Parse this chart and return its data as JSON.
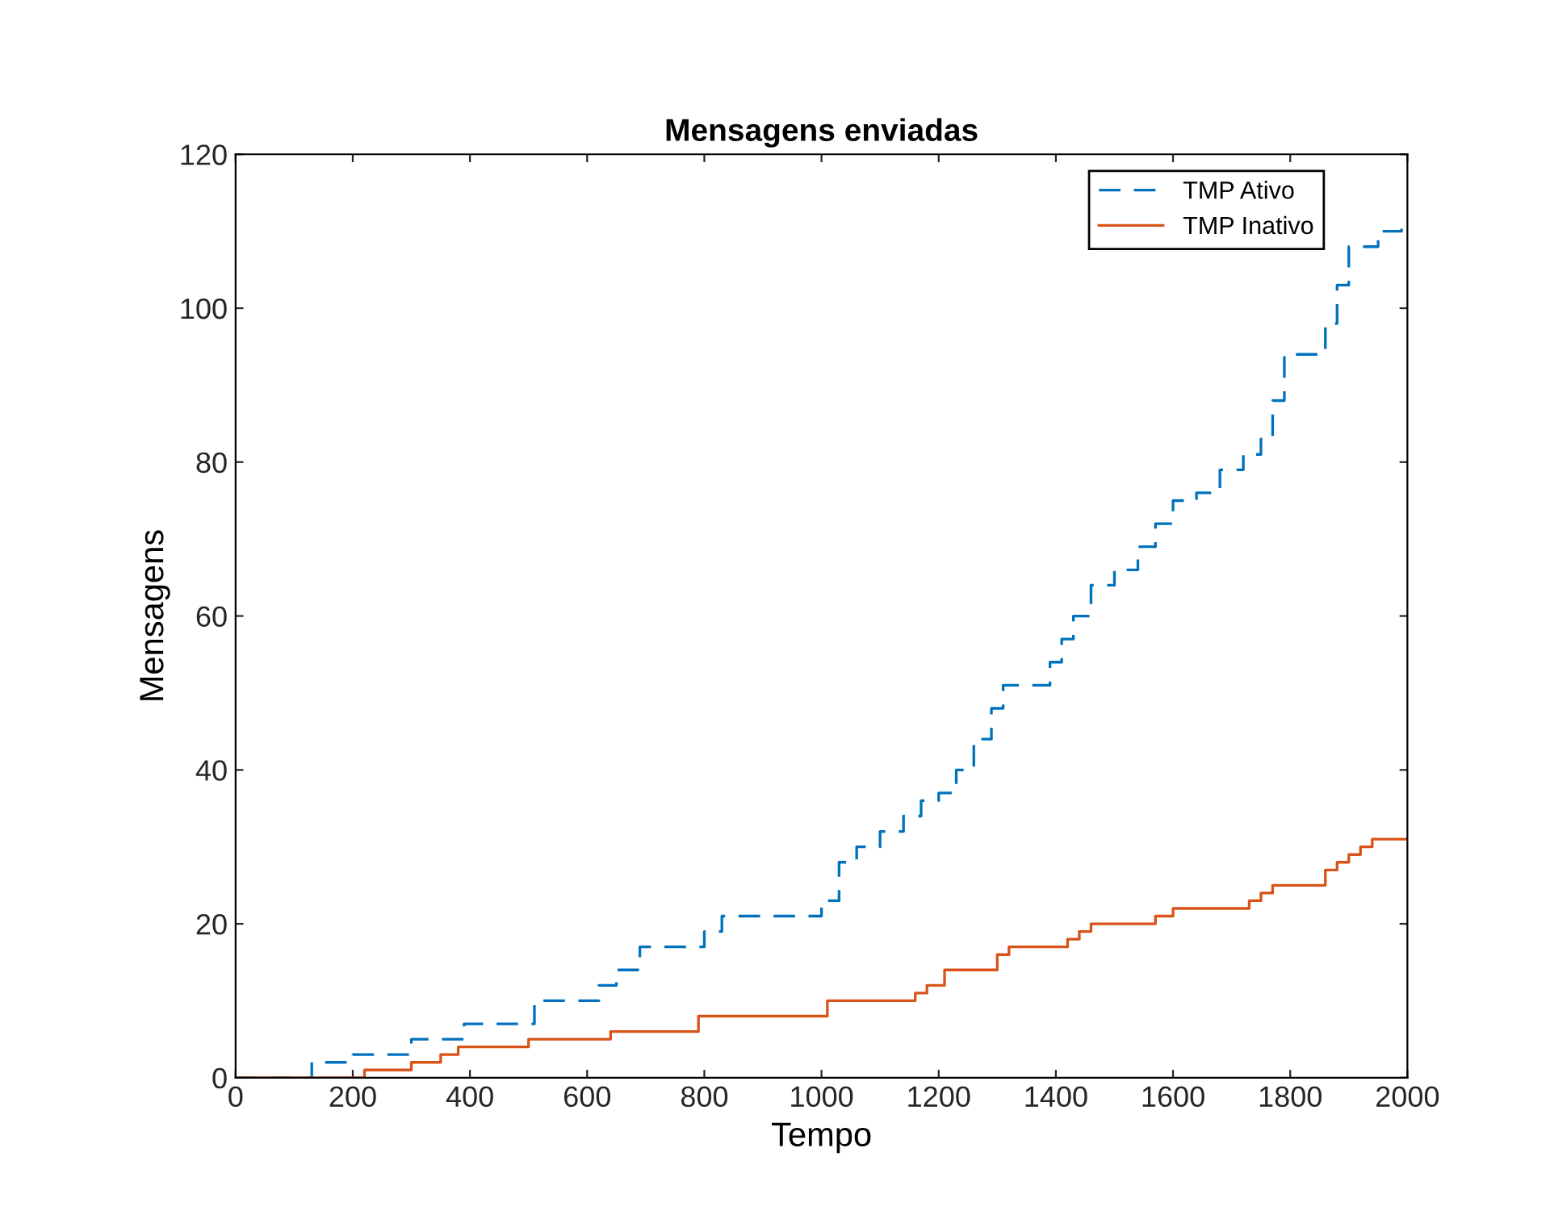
{
  "chart_data": {
    "type": "step",
    "title": "Mensagens enviadas",
    "xlabel": "Tempo",
    "ylabel": "Mensagens",
    "xlim": [
      0,
      2000
    ],
    "ylim": [
      0,
      120
    ],
    "xticks": [
      0,
      200,
      400,
      600,
      800,
      1000,
      1200,
      1400,
      1600,
      1800,
      2000
    ],
    "yticks": [
      0,
      20,
      40,
      60,
      80,
      100,
      120
    ],
    "grid": false,
    "legend": "top right",
    "series": [
      {
        "name": "TMP Ativo",
        "color": "#0072bd",
        "line_style": "dashed",
        "x": [
          0,
          130,
          200,
          300,
          390,
          510,
          620,
          650,
          690,
          800,
          830,
          1000,
          1030,
          1060,
          1100,
          1140,
          1170,
          1200,
          1230,
          1260,
          1290,
          1310,
          1390,
          1410,
          1430,
          1460,
          1500,
          1540,
          1570,
          1600,
          1640,
          1680,
          1720,
          1750,
          1770,
          1790,
          1860,
          1880,
          1900,
          1950,
          1990,
          2000
        ],
        "values": [
          0,
          2,
          3,
          5,
          7,
          10,
          12,
          14,
          17,
          19,
          21,
          23,
          28,
          30,
          32,
          34,
          36,
          37,
          40,
          44,
          48,
          51,
          54,
          57,
          60,
          64,
          66,
          69,
          72,
          75,
          76,
          79,
          81,
          83,
          88,
          94,
          98,
          103,
          108,
          110,
          111,
          111
        ]
      },
      {
        "name": "TMP Inativo",
        "color": "#d95319",
        "line_style": "solid",
        "x": [
          0,
          220,
          300,
          350,
          380,
          500,
          640,
          790,
          1010,
          1160,
          1180,
          1210,
          1300,
          1320,
          1420,
          1440,
          1460,
          1570,
          1600,
          1730,
          1750,
          1770,
          1860,
          1880,
          1900,
          1920,
          1940,
          2000
        ],
        "values": [
          0,
          1,
          2,
          3,
          4,
          5,
          6,
          8,
          10,
          11,
          12,
          14,
          16,
          17,
          18,
          19,
          20,
          21,
          22,
          23,
          24,
          25,
          27,
          28,
          29,
          30,
          31,
          31
        ]
      }
    ]
  }
}
